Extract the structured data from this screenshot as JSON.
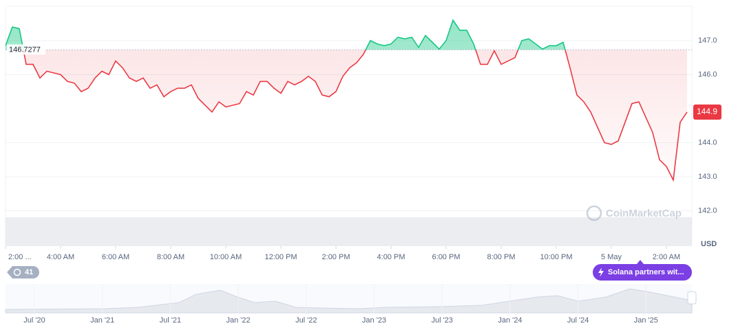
{
  "chart_data": {
    "type": "line",
    "baseline": 146.7277,
    "current_price": 144.9,
    "unit": "USD",
    "watermark": "CoinMarketCap",
    "color_up": "#16c784",
    "color_down": "#ea3943",
    "values": [
      146.85,
      147.4,
      147.35,
      146.3,
      146.3,
      145.9,
      146.1,
      146.05,
      146.0,
      145.8,
      145.75,
      145.5,
      145.6,
      145.9,
      146.1,
      146.0,
      146.4,
      146.2,
      145.9,
      145.8,
      145.9,
      145.6,
      145.7,
      145.35,
      145.5,
      145.6,
      145.6,
      145.7,
      145.3,
      145.1,
      144.9,
      145.2,
      145.05,
      145.1,
      145.15,
      145.5,
      145.4,
      145.8,
      145.8,
      145.6,
      145.45,
      145.8,
      145.7,
      145.8,
      145.95,
      145.8,
      145.4,
      145.35,
      145.5,
      145.95,
      146.2,
      146.35,
      146.6,
      147.0,
      146.9,
      146.85,
      146.9,
      147.1,
      147.05,
      147.1,
      146.8,
      147.15,
      146.95,
      146.75,
      147.0,
      147.6,
      147.3,
      147.3,
      146.9,
      146.3,
      146.3,
      146.7,
      146.3,
      146.4,
      146.5,
      147.0,
      147.05,
      146.9,
      146.75,
      146.85,
      146.85,
      146.95,
      146.2,
      145.4,
      145.2,
      144.9,
      144.45,
      144.0,
      143.95,
      144.05,
      144.6,
      145.15,
      145.2,
      144.75,
      144.3,
      143.5,
      143.3,
      142.9,
      144.6,
      144.9
    ],
    "xlim": [
      0,
      99.7
    ],
    "ylim": [
      141,
      148
    ],
    "yticks": [
      {
        "value": 142,
        "label": "142.0"
      },
      {
        "value": 143,
        "label": "143.0"
      },
      {
        "value": 144,
        "label": "144.0"
      },
      {
        "value": 146,
        "label": "146.0"
      },
      {
        "value": 147,
        "label": "147.0"
      }
    ],
    "xticks": [
      {
        "value": 0,
        "label": "2:00 ..."
      },
      {
        "value": 8,
        "label": "4:00 AM"
      },
      {
        "value": 16,
        "label": "6:00 AM"
      },
      {
        "value": 24,
        "label": "8:00 AM"
      },
      {
        "value": 32,
        "label": "10:00 AM"
      },
      {
        "value": 40,
        "label": "12:00 PM"
      },
      {
        "value": 48,
        "label": "2:00 PM"
      },
      {
        "value": 56,
        "label": "4:00 PM"
      },
      {
        "value": 64,
        "label": "6:00 PM"
      },
      {
        "value": 72,
        "label": "8:00 PM"
      },
      {
        "value": 80,
        "label": "10:00 PM"
      },
      {
        "value": 88,
        "label": "5 May"
      },
      {
        "value": 96,
        "label": "2:00 AM"
      }
    ],
    "grid": true
  },
  "badge_count": 41,
  "news_badge": "Solana partners wit...",
  "navigator": {
    "labels": [
      "Jul '20",
      "Jan '21",
      "Jul '21",
      "Jan '22",
      "Jul '22",
      "Jan '23",
      "Jul '23",
      "Jan '24",
      "Jul '24",
      "Jan '25"
    ]
  }
}
